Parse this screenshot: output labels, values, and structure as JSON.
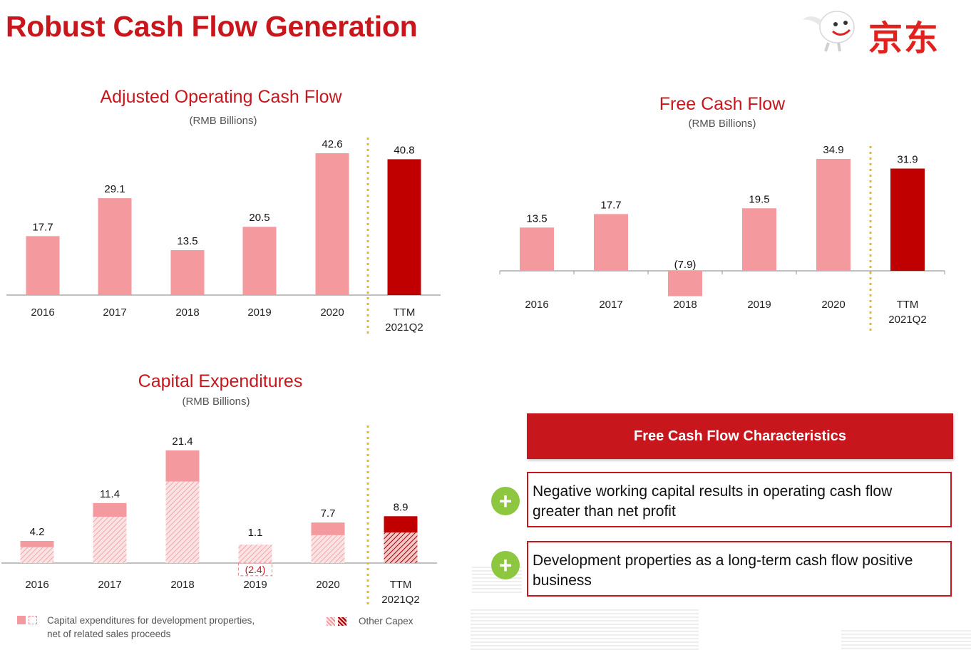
{
  "page": {
    "title": "Robust Cash Flow Generation",
    "logo_text": "京东"
  },
  "colors": {
    "title_red": "#c8161d",
    "bar_pink": "#f4999e",
    "bar_dark_red": "#c00000",
    "divider_gold": "#f0b429",
    "plus_green": "#8dc63f"
  },
  "chart_data": [
    {
      "type": "bar",
      "title": "Adjusted Operating Cash Flow",
      "subtitle": "(RMB Billions)",
      "categories": [
        "2016",
        "2017",
        "2018",
        "2019",
        "2020",
        "TTM\n2021Q2"
      ],
      "values": [
        17.7,
        29.1,
        13.5,
        20.5,
        42.6,
        40.8
      ],
      "ylim": [
        0,
        42.6
      ],
      "highlight_last": true
    },
    {
      "type": "bar",
      "title": "Free Cash Flow",
      "subtitle": "(RMB Billions)",
      "categories": [
        "2016",
        "2017",
        "2018",
        "2019",
        "2020",
        "TTM\n2021Q2"
      ],
      "values": [
        13.5,
        17.7,
        -7.9,
        19.5,
        34.9,
        31.9
      ],
      "labels": [
        "13.5",
        "17.7",
        "(7.9)",
        "19.5",
        "34.9",
        "31.9"
      ],
      "ylim": [
        -7.9,
        34.9
      ],
      "highlight_last": true
    },
    {
      "type": "bar",
      "stacked": true,
      "title": "Capital Expenditures",
      "subtitle": "(RMB Billions)",
      "categories": [
        "2016",
        "2017",
        "2018",
        "2019",
        "2020",
        "TTM\n2021Q2"
      ],
      "totals": [
        4.2,
        11.4,
        21.4,
        1.1,
        7.7,
        8.9
      ],
      "series": [
        {
          "name": "Capital expenditures for development properties, net of related sales proceeds",
          "values": [
            1.2,
            2.6,
            5.9,
            -2.4,
            2.4,
            3.1
          ]
        },
        {
          "name": "Other Capex",
          "values": [
            3.0,
            8.8,
            15.5,
            3.5,
            5.3,
            5.8
          ]
        }
      ],
      "negative_labels": [
        "",
        "",
        "",
        "(2.4)",
        "",
        ""
      ],
      "highlight_last": true
    }
  ],
  "legend": {
    "dev_properties": "Capital expenditures for development properties,\nnet of related sales proceeds",
    "other": "Other Capex"
  },
  "panel": {
    "header": "Free Cash Flow Characteristics",
    "points": [
      {
        "icon": "plus-icon",
        "text": "Negative working capital results in operating cash flow greater than net profit"
      },
      {
        "icon": "plus-icon",
        "text": "Development properties as a long-term cash flow positive business"
      }
    ]
  }
}
